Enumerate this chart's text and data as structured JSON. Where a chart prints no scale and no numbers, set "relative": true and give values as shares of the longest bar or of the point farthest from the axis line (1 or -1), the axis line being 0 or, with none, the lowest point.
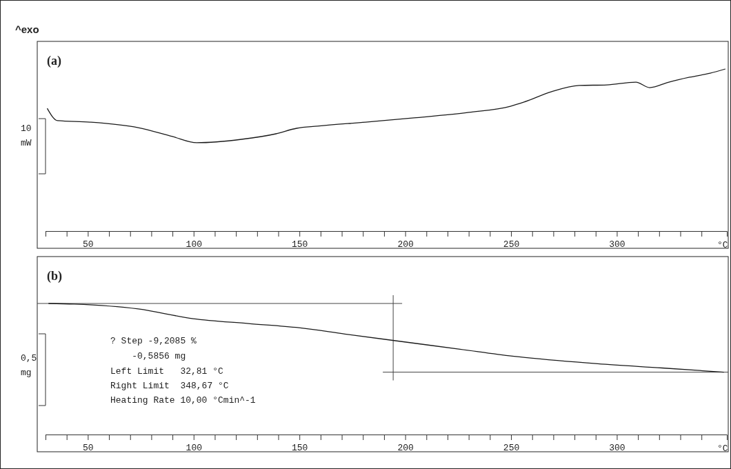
{
  "chart_data": [
    {
      "type": "line",
      "title": "(a)",
      "xlabel": "°C",
      "relative": true,
      "xlim": [
        30,
        352
      ],
      "xticks": [
        {
          "value": 30,
          "label": null
        },
        {
          "value": 40,
          "label": null
        },
        50,
        {
          "value": 60,
          "label": null
        },
        {
          "value": 70,
          "label": null
        },
        {
          "value": 80,
          "label": null
        },
        {
          "value": 90,
          "label": null
        },
        100,
        {
          "value": 110,
          "label": null
        },
        {
          "value": 120,
          "label": null
        },
        {
          "value": 130,
          "label": null
        },
        {
          "value": 140,
          "label": null
        },
        150,
        {
          "value": 160,
          "label": null
        },
        {
          "value": 170,
          "label": null
        },
        {
          "value": 180,
          "label": null
        },
        {
          "value": 190,
          "label": null
        },
        200,
        {
          "value": 210,
          "label": null
        },
        {
          "value": 220,
          "label": null
        },
        {
          "value": 230,
          "label": null
        },
        {
          "value": 240,
          "label": null
        },
        250,
        {
          "value": 260,
          "label": null
        },
        {
          "value": 270,
          "label": null
        },
        {
          "value": 280,
          "label": null
        },
        {
          "value": 290,
          "label": null
        },
        300,
        {
          "value": 310,
          "label": null
        },
        {
          "value": 320,
          "label": null
        },
        {
          "value": 330,
          "label": null
        },
        {
          "value": 340,
          "label": null
        }
      ],
      "x": [
        30.8,
        35.7,
        51,
        73.8,
        90,
        101.5,
        122.6,
        138.9,
        148.7,
        158.5,
        181.3,
        204.1,
        230.1,
        249.7,
        256.2,
        269.2,
        282.2,
        295.3,
        309,
        315.5,
        324.6,
        334.4,
        344.1,
        351.3
      ],
      "series": [
        {
          "color": "#1a1a1a",
          "values": [
            0.757,
            0.681,
            0.672,
            0.638,
            0.583,
            0.545,
            0.566,
            0.6,
            0.634,
            0.647,
            0.672,
            0.698,
            0.732,
            0.77,
            0.796,
            0.86,
            0.898,
            0.902,
            0.919,
            0.885,
            0.919,
            0.949,
            0.974,
            1.0
          ]
        }
      ],
      "annotations": [
        "^exo",
        "10\nmW"
      ]
    },
    {
      "type": "line",
      "title": "(b)",
      "xlabel": "°C",
      "relative": true,
      "xlim": [
        30,
        352
      ],
      "xticks": [
        {
          "value": 30,
          "label": null
        },
        {
          "value": 40,
          "label": null
        },
        50,
        {
          "value": 60,
          "label": null
        },
        {
          "value": 70,
          "label": null
        },
        {
          "value": 80,
          "label": null
        },
        {
          "value": 90,
          "label": null
        },
        100,
        {
          "value": 110,
          "label": null
        },
        {
          "value": 120,
          "label": null
        },
        {
          "value": 130,
          "label": null
        },
        {
          "value": 140,
          "label": null
        },
        150,
        {
          "value": 160,
          "label": null
        },
        {
          "value": 170,
          "label": null
        },
        {
          "value": 180,
          "label": null
        },
        {
          "value": 190,
          "label": null
        },
        200,
        {
          "value": 210,
          "label": null
        },
        {
          "value": 220,
          "label": null
        },
        {
          "value": 230,
          "label": null
        },
        {
          "value": 240,
          "label": null
        },
        250,
        {
          "value": 260,
          "label": null
        },
        {
          "value": 270,
          "label": null
        },
        {
          "value": 280,
          "label": null
        },
        {
          "value": 290,
          "label": null
        },
        300,
        {
          "value": 310,
          "label": null
        },
        {
          "value": 320,
          "label": null
        },
        {
          "value": 330,
          "label": null
        },
        {
          "value": 340,
          "label": null
        }
      ],
      "x": [
        31.4,
        43.5,
        73.8,
        99.8,
        125.9,
        149.7,
        171.5,
        191,
        225.9,
        250.7,
        291,
        321.3,
        350.6
      ],
      "series": [
        {
          "color": "#1a1a1a",
          "values": [
            1.0,
            0.995,
            0.958,
            0.884,
            0.847,
            0.815,
            0.767,
            0.725,
            0.651,
            0.598,
            0.54,
            0.508,
            0.476
          ]
        }
      ],
      "ref_lines": [
        {
          "axis": "y",
          "value": 1.0,
          "color": "#444444"
        },
        {
          "axis": "y",
          "value": 0.476,
          "color": "#444444"
        },
        {
          "axis": "x",
          "value": 194.3,
          "color": "#444444"
        }
      ],
      "annotations": [
        "0,5\nmg",
        "? Step -9,2085 %",
        "    -0,5856 mg",
        "Left Limit   32,81 °C",
        "Right Limit  348,67 °C",
        "Heating Rate 10,00 °Cmin^-1"
      ]
    }
  ]
}
